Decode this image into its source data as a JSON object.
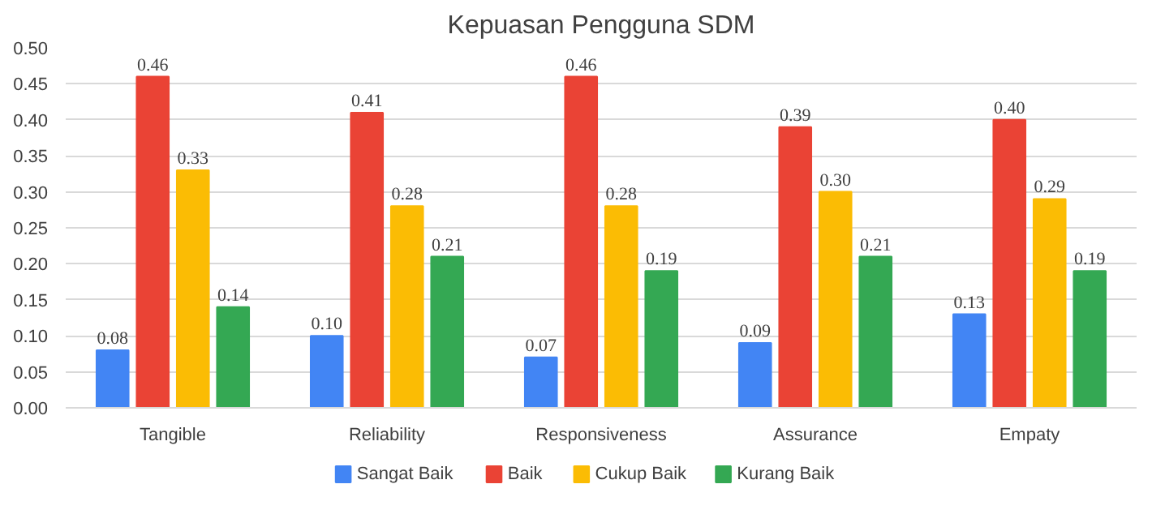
{
  "chart_data": {
    "type": "bar",
    "title": "Kepuasan Pengguna SDM",
    "categories": [
      "Tangible",
      "Reliability",
      "Responsiveness",
      "Assurance",
      "Empaty"
    ],
    "series": [
      {
        "name": "Sangat Baik",
        "color": "#4285f4",
        "values": [
          0.08,
          0.1,
          0.07,
          0.09,
          0.13
        ],
        "value_labels": [
          "0.08",
          "0.10",
          "0.07",
          "0.09",
          "0.13"
        ]
      },
      {
        "name": "Baik",
        "color": "#ea4335",
        "values": [
          0.46,
          0.41,
          0.46,
          0.39,
          0.4
        ],
        "value_labels": [
          "0.46",
          "0.41",
          "0.46",
          "0.39",
          "0.40"
        ]
      },
      {
        "name": "Cukup Baik",
        "color": "#fbbc04",
        "values": [
          0.33,
          0.28,
          0.28,
          0.3,
          0.29
        ],
        "value_labels": [
          "0.33",
          "0.28",
          "0.28",
          "0.30",
          "0.29"
        ]
      },
      {
        "name": "Kurang Baik",
        "color": "#34a853",
        "values": [
          0.14,
          0.21,
          0.19,
          0.21,
          0.19
        ],
        "value_labels": [
          "0.14",
          "0.21",
          "0.19",
          "0.21",
          "0.19"
        ]
      }
    ],
    "ylim": [
      0,
      0.5
    ],
    "yticks": [
      {
        "value": 0,
        "label": "0.00"
      },
      {
        "value": 0.05,
        "label": "0.05"
      },
      {
        "value": 0.1,
        "label": "0.10"
      },
      {
        "value": 0.15,
        "label": "0.15"
      },
      {
        "value": 0.2,
        "label": "0.20"
      },
      {
        "value": 0.25,
        "label": "0.25"
      },
      {
        "value": 0.3,
        "label": "0.30"
      },
      {
        "value": 0.35,
        "label": "0.35"
      },
      {
        "value": 0.4,
        "label": "0.40"
      },
      {
        "value": 0.45,
        "label": "0.45"
      },
      {
        "value": 0.5,
        "label": "0.50"
      }
    ],
    "grid": "y",
    "legend": "bottom"
  }
}
